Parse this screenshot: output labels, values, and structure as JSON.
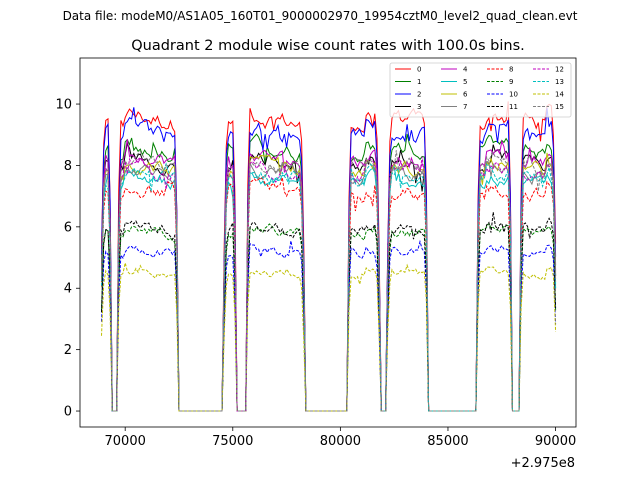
{
  "header": {
    "data_file": "Data file: modeM0/AS1A05_160T01_9000002970_19954cztM0_level2_quad_clean.evt"
  },
  "chart_data": {
    "type": "line",
    "title": "Quadrant 2 module wise count rates with 100.0s bins.",
    "xlabel": "",
    "ylabel": "",
    "x_offset_label": "+2.975e8",
    "x_offset": 297500000,
    "xlim": [
      67900,
      90950
    ],
    "ylim": [
      -0.52,
      11.5
    ],
    "xticks": [
      70000,
      75000,
      80000,
      85000,
      90000
    ],
    "xtick_labels": [
      "70000",
      "75000",
      "80000",
      "85000",
      "90000"
    ],
    "yticks": [
      0,
      2,
      4,
      6,
      8,
      10
    ],
    "ytick_labels": [
      "0",
      "2",
      "4",
      "6",
      "8",
      "10"
    ],
    "legend_position": "top-right",
    "observation_windows": [
      [
        68900,
        69350
      ],
      [
        69650,
        72450
      ],
      [
        74600,
        75150
      ],
      [
        75650,
        78300
      ],
      [
        80350,
        81800
      ],
      [
        82200,
        84050
      ],
      [
        86350,
        87950
      ],
      [
        88350,
        90000
      ]
    ],
    "series": [
      {
        "name": "0",
        "mean": 9.7,
        "color": "#ff0000",
        "dash": false
      },
      {
        "name": "1",
        "mean": 8.7,
        "color": "#008000",
        "dash": false
      },
      {
        "name": "2",
        "mean": 9.3,
        "color": "#0000ff",
        "dash": false
      },
      {
        "name": "3",
        "mean": 8.3,
        "color": "#000000",
        "dash": false
      },
      {
        "name": "4",
        "mean": 8.4,
        "color": "#bf00bf",
        "dash": false
      },
      {
        "name": "5",
        "mean": 7.7,
        "color": "#00bfbf",
        "dash": false
      },
      {
        "name": "6",
        "mean": 8.1,
        "color": "#bfbf00",
        "dash": false
      },
      {
        "name": "7",
        "mean": 7.9,
        "color": "#808080",
        "dash": false
      },
      {
        "name": "8",
        "mean": 7.3,
        "color": "#ff0000",
        "dash": true
      },
      {
        "name": "9",
        "mean": 6.0,
        "color": "#008000",
        "dash": true
      },
      {
        "name": "10",
        "mean": 5.3,
        "color": "#0000ff",
        "dash": true
      },
      {
        "name": "11",
        "mean": 6.1,
        "color": "#000000",
        "dash": true
      },
      {
        "name": "12",
        "mean": 8.0,
        "color": "#bf00bf",
        "dash": true
      },
      {
        "name": "13",
        "mean": 7.8,
        "color": "#00bfbf",
        "dash": true
      },
      {
        "name": "14",
        "mean": 4.6,
        "color": "#bfbf00",
        "dash": true
      },
      {
        "name": "15",
        "mean": 8.2,
        "color": "#808080",
        "dash": true
      }
    ]
  }
}
